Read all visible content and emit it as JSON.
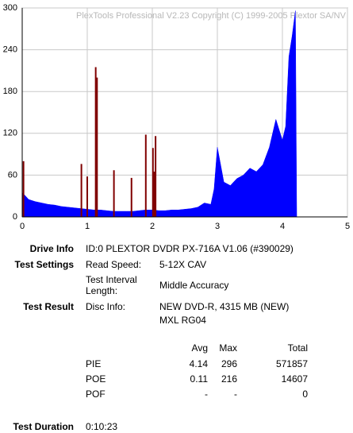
{
  "chart_data": {
    "type": "area",
    "title": "PlexTools Professional V2.23 Copyright (C) 1999-2005 Plextor SA/NV",
    "xlim": [
      0,
      5
    ],
    "xticks": [
      0,
      1,
      2,
      3,
      4,
      5
    ],
    "ylim": [
      0,
      300
    ],
    "yticks": [
      0,
      60,
      120,
      180,
      240,
      300
    ],
    "grid": true,
    "series": [
      {
        "color": "#0000ff",
        "kind": "area",
        "x": [
          0,
          0.1,
          0.2,
          0.3,
          0.4,
          0.5,
          0.6,
          0.7,
          0.8,
          0.9,
          1.0,
          1.1,
          1.2,
          1.3,
          1.4,
          1.5,
          1.6,
          1.7,
          1.8,
          1.9,
          2.0,
          2.1,
          2.2,
          2.3,
          2.4,
          2.5,
          2.6,
          2.7,
          2.8,
          2.9,
          2.95,
          3.0,
          3.1,
          3.2,
          3.3,
          3.4,
          3.5,
          3.6,
          3.7,
          3.8,
          3.9,
          4.0,
          4.05,
          4.1,
          4.15,
          4.2,
          4.22
        ],
        "values": [
          35,
          25,
          22,
          20,
          18,
          17,
          15,
          14,
          13,
          12,
          11,
          10,
          10,
          9,
          8,
          8,
          8,
          8,
          9,
          10,
          10,
          9,
          9,
          10,
          10,
          11,
          12,
          14,
          20,
          18,
          40,
          100,
          50,
          45,
          55,
          60,
          70,
          65,
          75,
          100,
          140,
          110,
          130,
          230,
          260,
          296,
          0
        ]
      },
      {
        "color": "#800000",
        "kind": "spike",
        "x": [
          0.02,
          0.91,
          1.0,
          1.13,
          1.15,
          1.41,
          1.68,
          1.9,
          2.01,
          2.03,
          2.05
        ],
        "values": [
          80,
          76,
          58,
          215,
          200,
          67,
          56,
          118,
          99,
          65,
          116
        ]
      }
    ]
  },
  "report": {
    "drive_info": {
      "label": "Drive Info",
      "value": "ID:0 PLEXTOR DVDR PX-716A V1.06 (#390029)"
    },
    "test_settings": {
      "label": "Test Settings",
      "items": [
        {
          "name": "Read Speed:",
          "value": "5-12X CAV"
        },
        {
          "name": "Test Interval Length:",
          "value": "Middle Accuracy"
        }
      ]
    },
    "test_result": {
      "label": "Test Result",
      "disc_info_label": "Disc Info:",
      "disc_info": [
        "NEW DVD-R, 4315 MB (NEW)",
        "MXL RG04"
      ]
    },
    "stats": {
      "columns": [
        "Avg",
        "Max",
        "Total"
      ],
      "rows": [
        [
          "PIE",
          4.14,
          296,
          571857
        ],
        [
          "POE",
          0.11,
          216,
          14607
        ],
        [
          "POF",
          "-",
          "-",
          0
        ]
      ]
    },
    "test_duration": {
      "label": "Test Duration",
      "value": "0:10:23"
    }
  }
}
